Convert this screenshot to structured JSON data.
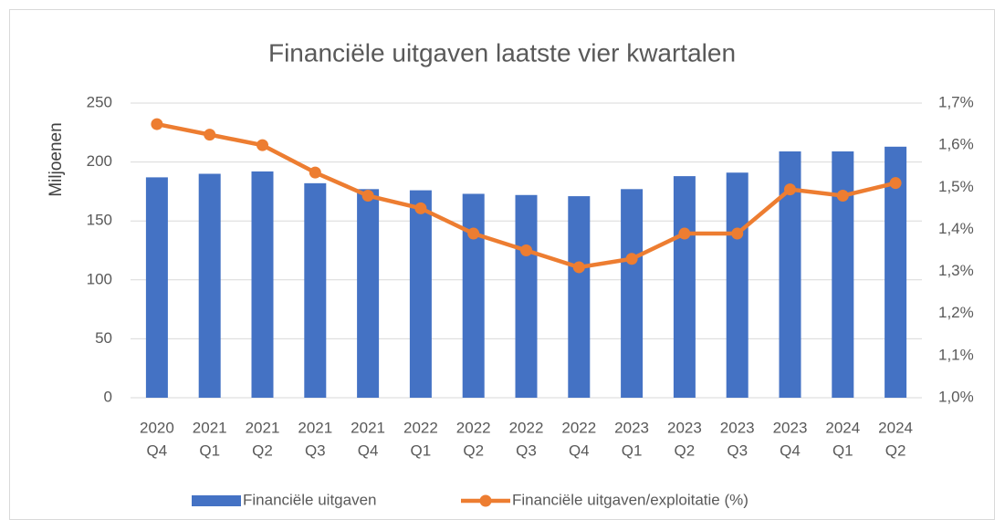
{
  "chart_data": {
    "type": "bar-line",
    "title": "Financiële uitgaven laatste vier kwartalen",
    "y_label": "Miljoenen",
    "categories": [
      [
        "2020",
        "Q4"
      ],
      [
        "2021",
        "Q1"
      ],
      [
        "2021",
        "Q2"
      ],
      [
        "2021",
        "Q3"
      ],
      [
        "2021",
        "Q4"
      ],
      [
        "2022",
        "Q1"
      ],
      [
        "2022",
        "Q2"
      ],
      [
        "2022",
        "Q3"
      ],
      [
        "2022",
        "Q4"
      ],
      [
        "2023",
        "Q1"
      ],
      [
        "2023",
        "Q2"
      ],
      [
        "2023",
        "Q3"
      ],
      [
        "2023",
        "Q4"
      ],
      [
        "2024",
        "Q1"
      ],
      [
        "2024",
        "Q2"
      ]
    ],
    "series": [
      {
        "name": "Financiële uitgaven",
        "type": "bar",
        "color": "#4472c4",
        "values": [
          187,
          190,
          192,
          182,
          177,
          176,
          173,
          172,
          171,
          177,
          188,
          191,
          209,
          209,
          213
        ]
      },
      {
        "name": "Financiële uitgaven/exploitatie (%)",
        "type": "line",
        "color": "#ed7d31",
        "axis": "y2",
        "values": [
          1.65,
          1.625,
          1.6,
          1.535,
          1.48,
          1.45,
          1.39,
          1.35,
          1.31,
          1.33,
          1.39,
          1.39,
          1.495,
          1.48,
          1.51
        ]
      }
    ],
    "ylim": [
      0,
      250
    ],
    "yticks": [
      0,
      50,
      100,
      150,
      200,
      250
    ],
    "y2lim": [
      1.0,
      1.7
    ],
    "y2ticks": [
      {
        "value": 1.0,
        "label": "1,0%"
      },
      {
        "value": 1.1,
        "label": "1,1%"
      },
      {
        "value": 1.2,
        "label": "1,2%"
      },
      {
        "value": 1.3,
        "label": "1,3%"
      },
      {
        "value": 1.4,
        "label": "1,4%"
      },
      {
        "value": 1.5,
        "label": "1,5%"
      },
      {
        "value": 1.6,
        "label": "1,6%"
      },
      {
        "value": 1.7,
        "label": "1,7%"
      }
    ],
    "grid": true,
    "legend": "bottom"
  }
}
